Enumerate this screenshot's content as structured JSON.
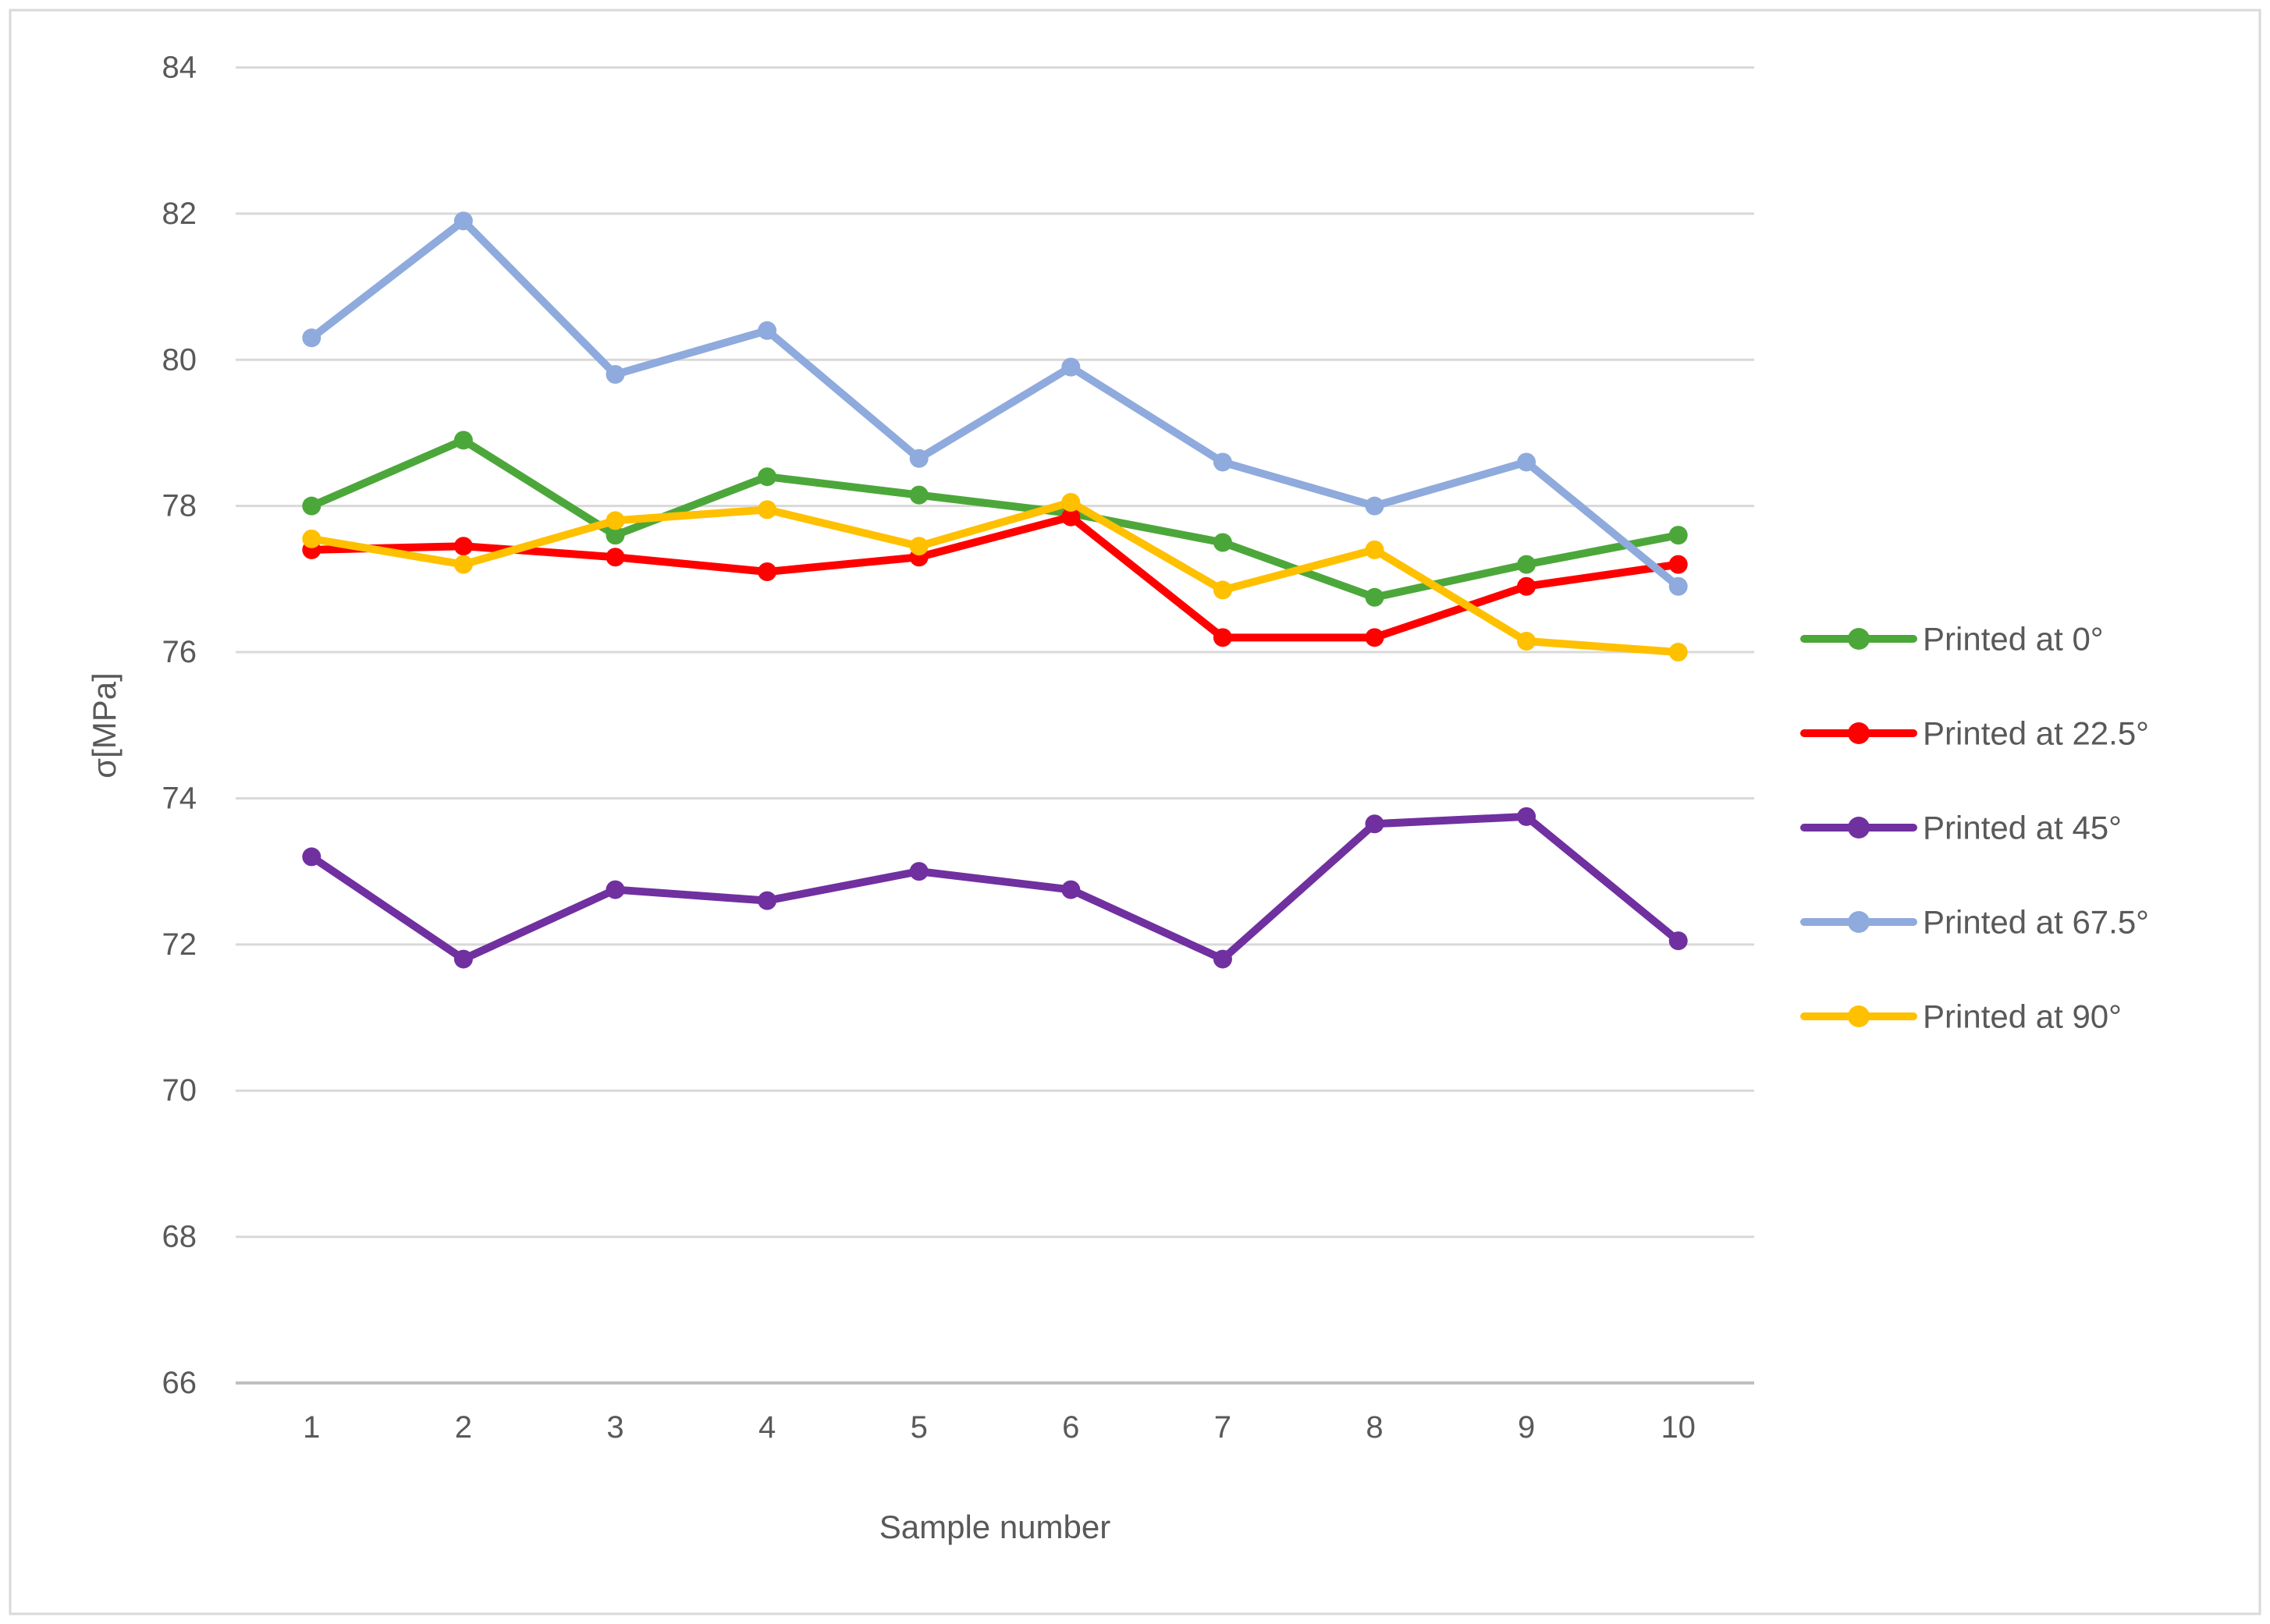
{
  "chart_data": {
    "type": "line",
    "title": "",
    "xlabel": "Sample number",
    "ylabel": "σ[MPa]",
    "x": [
      1,
      2,
      3,
      4,
      5,
      6,
      7,
      8,
      9,
      10
    ],
    "x_tick_labels": [
      "1",
      "2",
      "3",
      "4",
      "5",
      "6",
      "7",
      "8",
      "9",
      "10"
    ],
    "ylim": [
      66,
      84
    ],
    "y_ticks": [
      84,
      82,
      80,
      78,
      76,
      74,
      72,
      70,
      68,
      66
    ],
    "y_tick_labels": [
      "84",
      "82",
      "80",
      "78",
      "76",
      "74",
      "72",
      "70",
      "68",
      "66"
    ],
    "grid": true,
    "legend_position": "right",
    "series": [
      {
        "name": "Printed at 0°",
        "color": "#4CA73A",
        "values": [
          78.0,
          78.9,
          77.6,
          78.4,
          78.15,
          77.9,
          77.5,
          76.75,
          77.2,
          77.6
        ]
      },
      {
        "name": "Printed at 22.5°",
        "color": "#FF0000",
        "values": [
          77.4,
          77.45,
          77.3,
          77.1,
          77.3,
          77.85,
          76.2,
          76.2,
          76.9,
          77.2
        ]
      },
      {
        "name": "Printed at 45°",
        "color": "#7030A0",
        "values": [
          73.2,
          71.8,
          72.75,
          72.6,
          73.0,
          72.75,
          71.8,
          73.65,
          73.75,
          72.05
        ]
      },
      {
        "name": "Printed at 67.5°",
        "color": "#8FAADC",
        "values": [
          80.3,
          81.9,
          79.8,
          80.4,
          78.65,
          79.9,
          78.6,
          78.0,
          78.6,
          76.9
        ]
      },
      {
        "name": "Printed at 90°",
        "color": "#FFC000",
        "values": [
          77.55,
          77.2,
          77.8,
          77.95,
          77.45,
          78.05,
          76.85,
          77.4,
          76.15,
          76.0
        ]
      }
    ]
  },
  "styles": {
    "text_color": "#595959",
    "grid_color": "#D9D9D9",
    "axis_line_color": "#BFBFBF",
    "figure_border_color": "#D9D9D9",
    "background": "#FFFFFF"
  }
}
